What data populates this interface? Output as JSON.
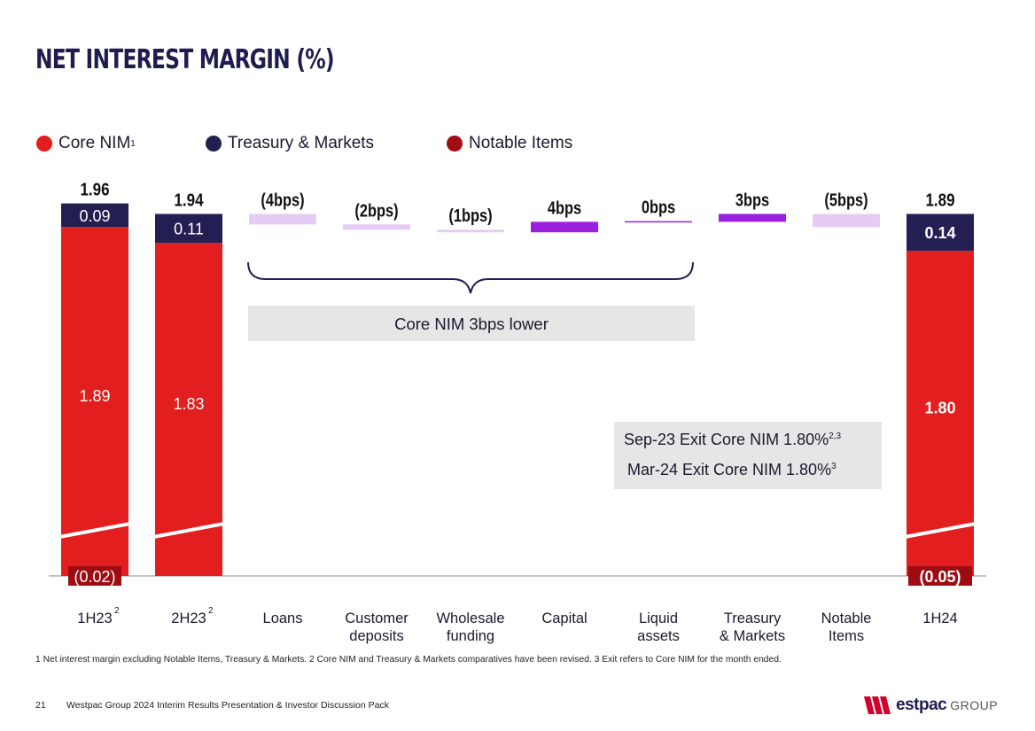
{
  "title": "NET INTEREST MARGIN (%)",
  "legend": [
    {
      "label": "Core NIM",
      "sup": "1",
      "color": "#e31e1e"
    },
    {
      "label": "Treasury & Markets",
      "sup": "",
      "color": "#231f52"
    },
    {
      "label": "Notable Items",
      "sup": "",
      "color": "#a10d12"
    }
  ],
  "chart_data": {
    "type": "bar",
    "title": "NET INTEREST MARGIN (%)",
    "colors": {
      "core": "#e31e1e",
      "treasury": "#231f52",
      "notable": "#9e0b12",
      "negative": "#e6ccf5",
      "positive": "#9a20e0",
      "zero": "#9a20e0"
    },
    "stacked_bars": [
      {
        "category": "1H23",
        "sup": "2",
        "core": 1.89,
        "treasury": 0.09,
        "notable": -0.02,
        "total_label": "1.96",
        "core_label": "1.89",
        "treasury_label": "0.09",
        "notable_label": "(0.02)",
        "bold_inner": false
      },
      {
        "category": "2H23",
        "sup": "2",
        "core": 1.83,
        "treasury": 0.11,
        "notable": 0,
        "total_label": "1.94",
        "core_label": "1.83",
        "treasury_label": "0.11",
        "notable_label": "",
        "bold_inner": false
      },
      {
        "category": "1H24",
        "sup": "",
        "core": 1.8,
        "treasury": 0.14,
        "notable": -0.05,
        "total_label": "1.89",
        "core_label": "1.80",
        "treasury_label": "0.14",
        "notable_label": "(0.05)",
        "bold_inner": true
      }
    ],
    "waterfall": [
      {
        "category": "Loans",
        "label": "(4bps)",
        "bps": -4,
        "start": 1.94
      },
      {
        "category": "Customer deposits",
        "label": "(2bps)",
        "bps": -2,
        "start": 1.9
      },
      {
        "category": "Wholesale funding",
        "label": "(1bps)",
        "bps": -1,
        "start": 1.88
      },
      {
        "category": "Capital",
        "label": "4bps",
        "bps": 4,
        "start": 1.87
      },
      {
        "category": "Liquid assets",
        "label": "0bps",
        "bps": 0,
        "start": 1.91
      },
      {
        "category": "Treasury & Markets",
        "label": "3bps",
        "bps": 3,
        "start": 1.91
      },
      {
        "category": "Notable Items",
        "label": "(5bps)",
        "bps": -5,
        "start": 1.94
      }
    ],
    "category_labels": [
      {
        "lines": [
          "1H23"
        ],
        "sup": "2"
      },
      {
        "lines": [
          "2H23"
        ],
        "sup": "2"
      },
      {
        "lines": [
          "Loans"
        ],
        "sup": ""
      },
      {
        "lines": [
          "Customer",
          "deposits"
        ],
        "sup": ""
      },
      {
        "lines": [
          "Wholesale",
          "funding"
        ],
        "sup": ""
      },
      {
        "lines": [
          "Capital"
        ],
        "sup": ""
      },
      {
        "lines": [
          "Liquid",
          "assets"
        ],
        "sup": ""
      },
      {
        "lines": [
          "Treasury",
          "& Markets"
        ],
        "sup": ""
      },
      {
        "lines": [
          "Notable",
          "Items"
        ],
        "sup": ""
      },
      {
        "lines": [
          "1H24"
        ],
        "sup": ""
      }
    ],
    "bracket_label": "Core NIM 3bps lower",
    "axis_break": true
  },
  "notes": {
    "line1": "Sep-23 Exit Core NIM 1.80%",
    "line1_sup": "2,3",
    "line2": "Mar-24 Exit Core NIM 1.80%",
    "line2_sup": "3"
  },
  "footnote": "1 Net interest margin excluding Notable Items, Treasury & Markets. 2 Core NIM and Treasury & Markets comparatives have been revised. 3 Exit refers to Core NIM for the month ended.",
  "footer": {
    "page_number": "21",
    "text": "Westpac Group 2024 Interim Results Presentation & Investor Discussion Pack",
    "logo_word": "estpac",
    "logo_group": "GROUP"
  }
}
